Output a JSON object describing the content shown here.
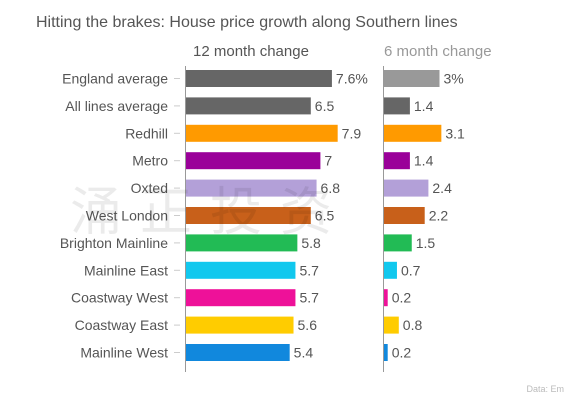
{
  "chart_data": {
    "type": "bar",
    "orientation": "horizontal",
    "title": "Hitting the brakes: House price growth along Southern lines",
    "categories": [
      "England average",
      "All lines average",
      "Redhill",
      "Metro",
      "Oxted",
      "West London",
      "Brighton Mainline",
      "Mainline East",
      "Coastway West",
      "Coastway East",
      "Mainline West"
    ],
    "colors": [
      "#666666",
      "#666666",
      "#ff9a00",
      "#9a0099",
      "#b3a0d8",
      "#c8601a",
      "#22bb55",
      "#11c8ee",
      "#ee1199",
      "#ffcc00",
      "#1188dd"
    ],
    "panels": [
      {
        "name": "12 month change",
        "head_color": "#555555",
        "first_bar_color": "#666666",
        "values": [
          7.6,
          6.5,
          7.9,
          7,
          6.8,
          6.5,
          5.8,
          5.7,
          5.7,
          5.6,
          5.4
        ],
        "labels": [
          "7.6%",
          "6.5",
          "7.9",
          "7",
          "6.8",
          "6.5",
          "5.8",
          "5.7",
          "5.7",
          "5.6",
          "5.4"
        ]
      },
      {
        "name": "6 month change",
        "head_color": "#999999",
        "first_bar_color": "#999999",
        "values": [
          3,
          1.4,
          3.1,
          1.4,
          2.4,
          2.2,
          1.5,
          0.7,
          0.2,
          0.8,
          0.2
        ],
        "labels": [
          "3%",
          "1.4",
          "3.1",
          "1.4",
          "2.4",
          "2.2",
          "1.5",
          "0.7",
          "0.2",
          "0.8",
          "0.2"
        ]
      }
    ],
    "source": "Data: Em"
  },
  "watermark": "涌正投资"
}
